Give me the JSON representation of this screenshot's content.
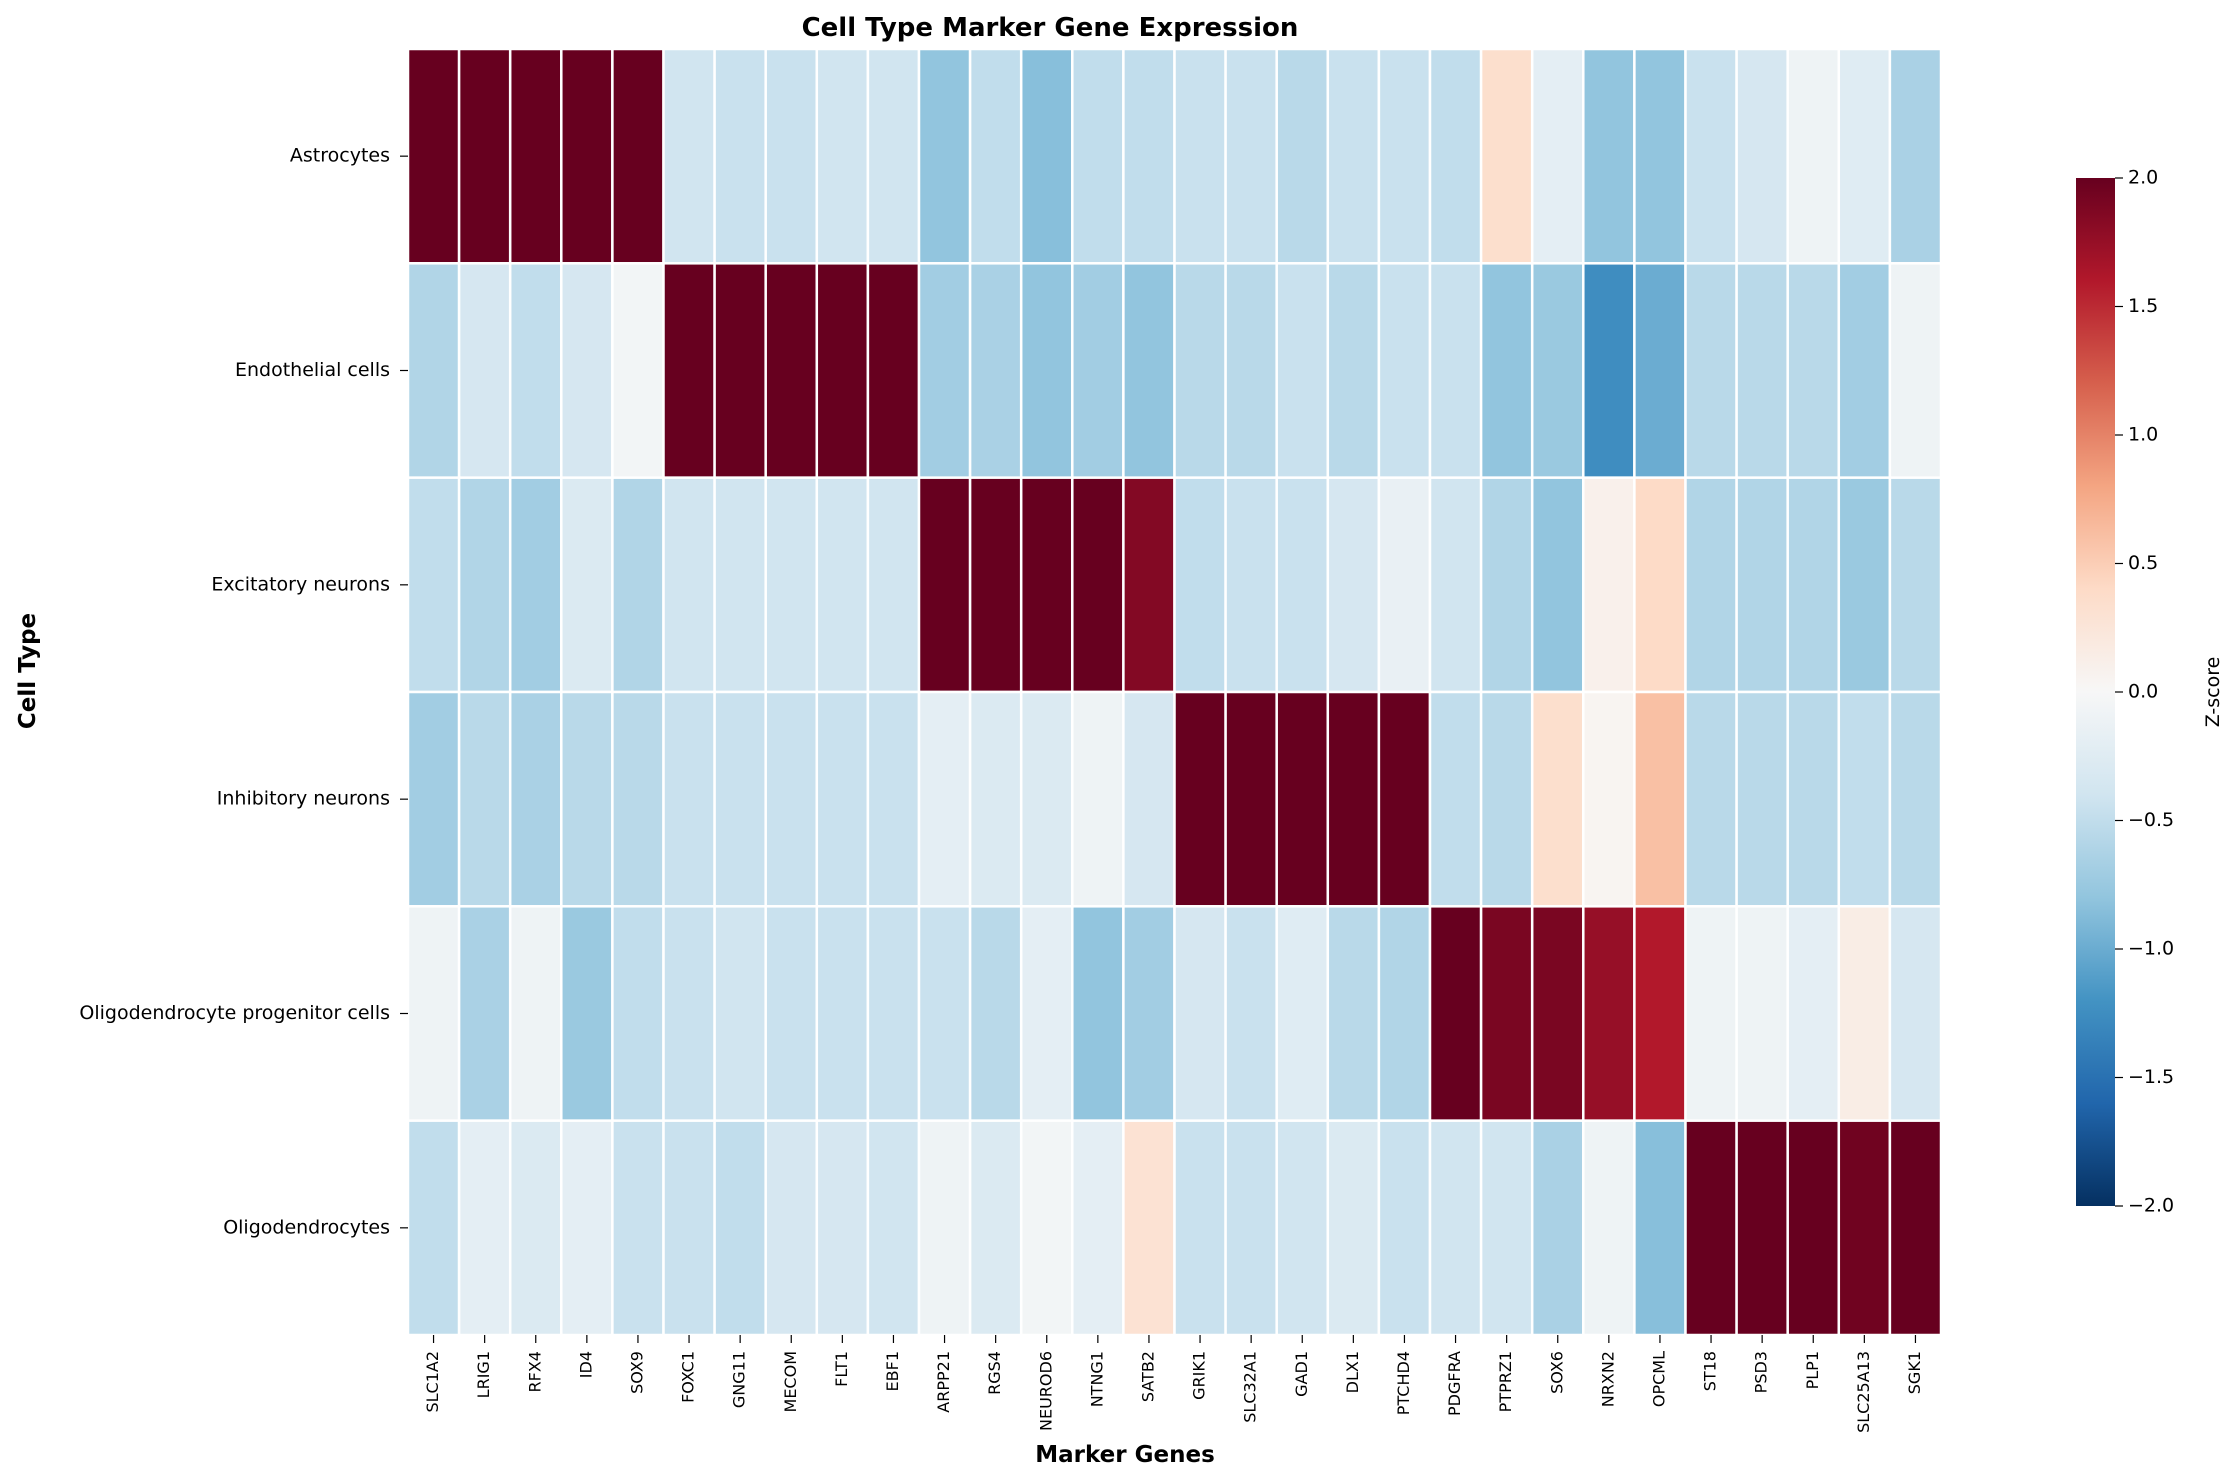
{
  "chart_data": {
    "type": "heatmap",
    "title": "Cell Type Marker Gene Expression",
    "xlabel": "Marker Genes",
    "ylabel": "Cell Type",
    "colorbar_label": "Z-score",
    "colorbar_range": [
      -2.0,
      2.0
    ],
    "colorbar_ticks": [
      "2.0",
      "1.5",
      "1.0",
      "0.5",
      "0.0",
      "−0.5",
      "−1.0",
      "−1.5",
      "−2.0"
    ],
    "colormap": "RdBu_r",
    "columns": [
      "SLC1A2",
      "LRIG1",
      "RFX4",
      "ID4",
      "SOX9",
      "FOXC1",
      "GNG11",
      "MECOM",
      "FLT1",
      "EBF1",
      "ARPP21",
      "RGS4",
      "NEUROD6",
      "NTNG1",
      "SATB2",
      "GRIK1",
      "SLC32A1",
      "GAD1",
      "DLX1",
      "PTCHD4",
      "PDGFRA",
      "PTPRZ1",
      "SOX6",
      "NRXN2",
      "OPCML",
      "ST18",
      "PSD3",
      "PLP1",
      "SLC25A13",
      "SGK1"
    ],
    "rows": [
      "Astrocytes",
      "Endothelial cells",
      "Excitatory neurons",
      "Inhibitory neurons",
      "Oligodendrocyte progenitor cells",
      "Oligodendrocytes"
    ],
    "values": [
      [
        2.0,
        2.0,
        2.0,
        2.0,
        2.0,
        -0.4,
        -0.45,
        -0.45,
        -0.4,
        -0.4,
        -0.8,
        -0.5,
        -0.85,
        -0.5,
        -0.5,
        -0.45,
        -0.45,
        -0.55,
        -0.45,
        -0.45,
        -0.5,
        0.35,
        -0.2,
        -0.8,
        -0.8,
        -0.45,
        -0.35,
        -0.1,
        -0.25,
        -0.65
      ],
      [
        -0.6,
        -0.35,
        -0.5,
        -0.35,
        -0.05,
        2.0,
        2.0,
        2.0,
        2.0,
        2.0,
        -0.7,
        -0.65,
        -0.8,
        -0.7,
        -0.8,
        -0.55,
        -0.55,
        -0.45,
        -0.55,
        -0.45,
        -0.45,
        -0.8,
        -0.75,
        -1.25,
        -1.0,
        -0.55,
        -0.55,
        -0.55,
        -0.7,
        -0.1
      ],
      [
        -0.5,
        -0.6,
        -0.7,
        -0.3,
        -0.6,
        -0.4,
        -0.4,
        -0.4,
        -0.4,
        -0.4,
        2.0,
        2.0,
        2.0,
        2.0,
        1.85,
        -0.5,
        -0.45,
        -0.45,
        -0.35,
        -0.15,
        -0.4,
        -0.6,
        -0.8,
        0.1,
        0.4,
        -0.6,
        -0.6,
        -0.6,
        -0.75,
        -0.55
      ],
      [
        -0.7,
        -0.55,
        -0.65,
        -0.55,
        -0.55,
        -0.45,
        -0.45,
        -0.45,
        -0.45,
        -0.45,
        -0.2,
        -0.3,
        -0.3,
        -0.1,
        -0.35,
        2.0,
        2.0,
        2.0,
        2.0,
        2.0,
        -0.5,
        -0.55,
        0.35,
        0.05,
        0.6,
        -0.55,
        -0.55,
        -0.55,
        -0.5,
        -0.55
      ],
      [
        -0.1,
        -0.65,
        -0.1,
        -0.75,
        -0.5,
        -0.45,
        -0.4,
        -0.45,
        -0.45,
        -0.45,
        -0.45,
        -0.55,
        -0.2,
        -0.8,
        -0.7,
        -0.35,
        -0.45,
        -0.25,
        -0.55,
        -0.6,
        2.0,
        1.9,
        1.9,
        1.75,
        1.6,
        -0.1,
        -0.1,
        -0.2,
        0.15,
        -0.35
      ],
      [
        -0.5,
        -0.2,
        -0.3,
        -0.2,
        -0.45,
        -0.45,
        -0.5,
        -0.35,
        -0.35,
        -0.4,
        -0.1,
        -0.3,
        -0.05,
        -0.2,
        0.3,
        -0.45,
        -0.45,
        -0.4,
        -0.3,
        -0.45,
        -0.4,
        -0.4,
        -0.65,
        -0.1,
        -0.85,
        2.0,
        2.0,
        2.0,
        1.95,
        2.0
      ]
    ]
  }
}
